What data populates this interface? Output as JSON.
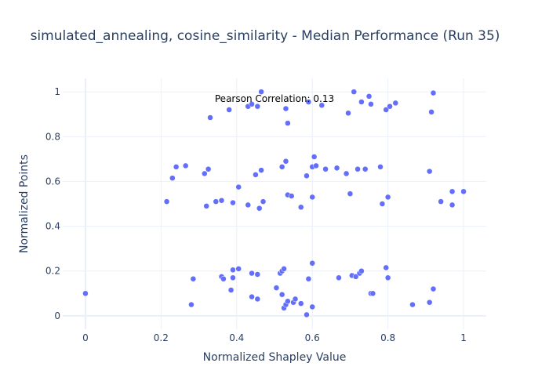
{
  "chart_data": {
    "type": "scatter",
    "title": "simulated_annealing, cosine_similarity - Median Performance (Run 35)",
    "xlabel": "Normalized Shapley Value",
    "ylabel": "Normalized Points",
    "xlim": [
      -0.06,
      1.06
    ],
    "ylim": [
      -0.06,
      1.06
    ],
    "x_ticks": [
      0,
      0.2,
      0.4,
      0.6,
      0.8,
      1
    ],
    "x_tick_labels": [
      "0",
      "0.2",
      "0.4",
      "0.6",
      "0.8",
      "1"
    ],
    "y_ticks": [
      0,
      0.2,
      0.4,
      0.6,
      0.8,
      1
    ],
    "y_tick_labels": [
      "0",
      "0.2",
      "0.4",
      "0.6",
      "0.8",
      "1"
    ],
    "grid": true,
    "marker_color": "#636efa",
    "annotation": "Pearson Correlation: 0.13",
    "points": [
      [
        0.0,
        0.1
      ],
      [
        0.28,
        0.05
      ],
      [
        0.285,
        0.165
      ],
      [
        0.36,
        0.175
      ],
      [
        0.365,
        0.165
      ],
      [
        0.385,
        0.115
      ],
      [
        0.39,
        0.205
      ],
      [
        0.39,
        0.17
      ],
      [
        0.405,
        0.21
      ],
      [
        0.44,
        0.19
      ],
      [
        0.44,
        0.085
      ],
      [
        0.455,
        0.075
      ],
      [
        0.455,
        0.185
      ],
      [
        0.505,
        0.125
      ],
      [
        0.515,
        0.19
      ],
      [
        0.52,
        0.095
      ],
      [
        0.52,
        0.2
      ],
      [
        0.525,
        0.21
      ],
      [
        0.525,
        0.035
      ],
      [
        0.53,
        0.05
      ],
      [
        0.535,
        0.065
      ],
      [
        0.55,
        0.06
      ],
      [
        0.555,
        0.075
      ],
      [
        0.57,
        0.055
      ],
      [
        0.585,
        0.005
      ],
      [
        0.59,
        0.165
      ],
      [
        0.6,
        0.235
      ],
      [
        0.6,
        0.04
      ],
      [
        0.67,
        0.17
      ],
      [
        0.705,
        0.18
      ],
      [
        0.715,
        0.175
      ],
      [
        0.725,
        0.19
      ],
      [
        0.73,
        0.2
      ],
      [
        0.755,
        0.1
      ],
      [
        0.76,
        0.1
      ],
      [
        0.795,
        0.215
      ],
      [
        0.8,
        0.17
      ],
      [
        0.865,
        0.05
      ],
      [
        0.91,
        0.06
      ],
      [
        0.92,
        0.12
      ],
      [
        0.215,
        0.51
      ],
      [
        0.23,
        0.615
      ],
      [
        0.24,
        0.665
      ],
      [
        0.265,
        0.67
      ],
      [
        0.315,
        0.635
      ],
      [
        0.32,
        0.49
      ],
      [
        0.325,
        0.655
      ],
      [
        0.345,
        0.51
      ],
      [
        0.36,
        0.515
      ],
      [
        0.39,
        0.505
      ],
      [
        0.405,
        0.575
      ],
      [
        0.43,
        0.495
      ],
      [
        0.45,
        0.63
      ],
      [
        0.46,
        0.48
      ],
      [
        0.465,
        0.65
      ],
      [
        0.47,
        0.51
      ],
      [
        0.52,
        0.665
      ],
      [
        0.53,
        0.69
      ],
      [
        0.535,
        0.54
      ],
      [
        0.545,
        0.535
      ],
      [
        0.57,
        0.485
      ],
      [
        0.585,
        0.625
      ],
      [
        0.6,
        0.665
      ],
      [
        0.6,
        0.53
      ],
      [
        0.605,
        0.71
      ],
      [
        0.61,
        0.67
      ],
      [
        0.635,
        0.655
      ],
      [
        0.665,
        0.66
      ],
      [
        0.69,
        0.635
      ],
      [
        0.7,
        0.545
      ],
      [
        0.72,
        0.655
      ],
      [
        0.74,
        0.655
      ],
      [
        0.78,
        0.665
      ],
      [
        0.785,
        0.5
      ],
      [
        0.8,
        0.53
      ],
      [
        0.91,
        0.645
      ],
      [
        0.94,
        0.51
      ],
      [
        0.97,
        0.495
      ],
      [
        0.97,
        0.555
      ],
      [
        1.0,
        0.555
      ],
      [
        0.33,
        0.885
      ],
      [
        0.38,
        0.92
      ],
      [
        0.43,
        0.935
      ],
      [
        0.44,
        0.945
      ],
      [
        0.455,
        0.935
      ],
      [
        0.465,
        1.0
      ],
      [
        0.53,
        0.925
      ],
      [
        0.535,
        0.86
      ],
      [
        0.59,
        0.955
      ],
      [
        0.625,
        0.94
      ],
      [
        0.695,
        0.905
      ],
      [
        0.71,
        1.0
      ],
      [
        0.73,
        0.955
      ],
      [
        0.75,
        0.98
      ],
      [
        0.755,
        0.945
      ],
      [
        0.795,
        0.92
      ],
      [
        0.805,
        0.935
      ],
      [
        0.82,
        0.95
      ],
      [
        0.915,
        0.91
      ],
      [
        0.92,
        0.995
      ]
    ]
  }
}
